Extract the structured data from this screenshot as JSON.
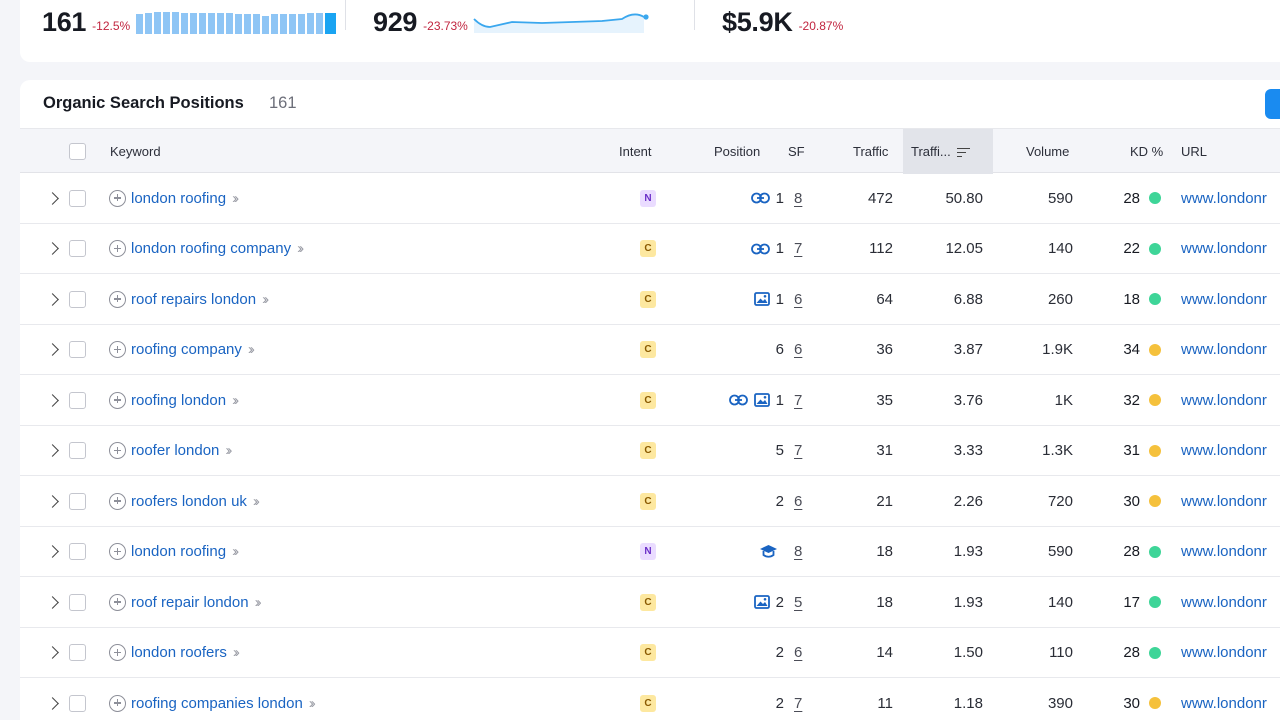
{
  "summary": {
    "keywords": {
      "value": "161",
      "delta": "-12.5%"
    },
    "traffic": {
      "value": "929",
      "delta": "-23.73%"
    },
    "traffic_cost": {
      "value": "$5.9K",
      "delta": "-20.87%"
    },
    "keyword_trend": [
      16,
      17,
      18,
      18,
      18,
      17,
      17,
      17,
      17,
      17,
      17,
      16,
      16,
      16,
      15,
      16,
      16,
      16,
      16,
      17,
      17,
      17
    ],
    "accent_color": "#1aa4f2",
    "negative_color": "#c1253f"
  },
  "positions": {
    "title": "Organic Search Positions",
    "count": "161"
  },
  "columns": {
    "keyword": "Keyword",
    "intent": "Intent",
    "position": "Position",
    "sf": "SF",
    "traffic": "Traffic",
    "traffic_pct": "Traffi...",
    "volume": "Volume",
    "kd": "KD %",
    "url": "URL"
  },
  "rows": [
    {
      "keyword": "london roofing",
      "intent": "N",
      "features": [
        "link"
      ],
      "position": "1",
      "sf": "8",
      "traffic": "472",
      "traffic_pct": "50.80",
      "volume": "590",
      "kd": "28",
      "kd_color": "#3ed598",
      "url": "www.londonr"
    },
    {
      "keyword": "london roofing company",
      "intent": "C",
      "features": [
        "link"
      ],
      "position": "1",
      "sf": "7",
      "traffic": "112",
      "traffic_pct": "12.05",
      "volume": "140",
      "kd": "22",
      "kd_color": "#3ed598",
      "url": "www.londonr"
    },
    {
      "keyword": "roof repairs london",
      "intent": "C",
      "features": [
        "image"
      ],
      "position": "1",
      "sf": "6",
      "traffic": "64",
      "traffic_pct": "6.88",
      "volume": "260",
      "kd": "18",
      "kd_color": "#3ed598",
      "url": "www.londonr"
    },
    {
      "keyword": "roofing company",
      "intent": "C",
      "features": [],
      "position": "6",
      "sf": "6",
      "traffic": "36",
      "traffic_pct": "3.87",
      "volume": "1.9K",
      "kd": "34",
      "kd_color": "#f5c13c",
      "url": "www.londonr"
    },
    {
      "keyword": "roofing london",
      "intent": "C",
      "features": [
        "link",
        "image"
      ],
      "position": "1",
      "sf": "7",
      "traffic": "35",
      "traffic_pct": "3.76",
      "volume": "1K",
      "kd": "32",
      "kd_color": "#f5c13c",
      "url": "www.londonr"
    },
    {
      "keyword": "roofer london",
      "intent": "C",
      "features": [],
      "position": "5",
      "sf": "7",
      "traffic": "31",
      "traffic_pct": "3.33",
      "volume": "1.3K",
      "kd": "31",
      "kd_color": "#f5c13c",
      "url": "www.londonr"
    },
    {
      "keyword": "roofers london uk",
      "intent": "C",
      "features": [],
      "position": "2",
      "sf": "6",
      "traffic": "21",
      "traffic_pct": "2.26",
      "volume": "720",
      "kd": "30",
      "kd_color": "#f5c13c",
      "url": "www.londonr"
    },
    {
      "keyword": "london roofing",
      "intent": "N",
      "features": [
        "cap"
      ],
      "position": "",
      "sf": "8",
      "traffic": "18",
      "traffic_pct": "1.93",
      "volume": "590",
      "kd": "28",
      "kd_color": "#3ed598",
      "url": "www.londonr"
    },
    {
      "keyword": "roof repair london",
      "intent": "C",
      "features": [
        "image"
      ],
      "position": "2",
      "sf": "5",
      "traffic": "18",
      "traffic_pct": "1.93",
      "volume": "140",
      "kd": "17",
      "kd_color": "#3ed598",
      "url": "www.londonr"
    },
    {
      "keyword": "london roofers",
      "intent": "C",
      "features": [],
      "position": "2",
      "sf": "6",
      "traffic": "14",
      "traffic_pct": "1.50",
      "volume": "110",
      "kd": "28",
      "kd_color": "#3ed598",
      "url": "www.londonr"
    },
    {
      "keyword": "roofing companies london",
      "intent": "C",
      "features": [],
      "position": "2",
      "sf": "7",
      "traffic": "11",
      "traffic_pct": "1.18",
      "volume": "390",
      "kd": "30",
      "kd_color": "#f5c13c",
      "url": "www.londonr"
    }
  ]
}
